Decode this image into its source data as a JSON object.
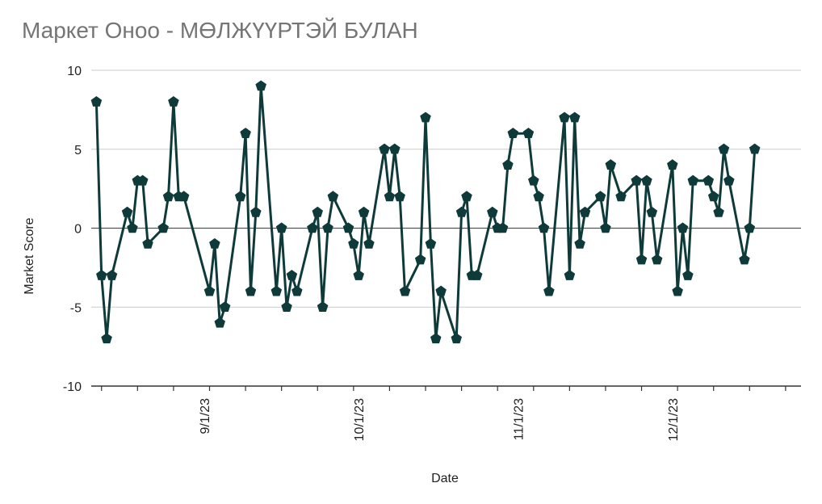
{
  "chart_data": {
    "type": "line",
    "title": "Маркет Оноо - МӨЛЖҮҮРТЭЙ БУЛАН",
    "xlabel": "Date",
    "ylabel": "Market Score",
    "ylim": [
      -10,
      10
    ],
    "y_ticks": [
      10,
      5,
      0,
      -5,
      -10
    ],
    "x_ticks": [
      "9/1/23",
      "10/1/23",
      "11/1/23",
      "12/1/23"
    ],
    "x_range": [
      "2023-08-10",
      "2023-12-26"
    ],
    "grid": true,
    "legend": "none",
    "series": [
      {
        "color": "#0f3a3a",
        "points": [
          [
            "2023-08-11",
            8
          ],
          [
            "2023-08-12",
            -3
          ],
          [
            "2023-08-13",
            -7
          ],
          [
            "2023-08-14",
            -3
          ],
          [
            "2023-08-17",
            1
          ],
          [
            "2023-08-18",
            0
          ],
          [
            "2023-08-19",
            3
          ],
          [
            "2023-08-20",
            3
          ],
          [
            "2023-08-21",
            -1
          ],
          [
            "2023-08-24",
            0
          ],
          [
            "2023-08-25",
            2
          ],
          [
            "2023-08-26",
            8
          ],
          [
            "2023-08-27",
            2
          ],
          [
            "2023-08-28",
            2
          ],
          [
            "2023-09-02",
            -4
          ],
          [
            "2023-09-03",
            -1
          ],
          [
            "2023-09-04",
            -6
          ],
          [
            "2023-09-05",
            -5
          ],
          [
            "2023-09-08",
            2
          ],
          [
            "2023-09-09",
            6
          ],
          [
            "2023-09-10",
            -4
          ],
          [
            "2023-09-11",
            1
          ],
          [
            "2023-09-12",
            9
          ],
          [
            "2023-09-15",
            -4
          ],
          [
            "2023-09-16",
            0
          ],
          [
            "2023-09-17",
            -5
          ],
          [
            "2023-09-18",
            -3
          ],
          [
            "2023-09-19",
            -4
          ],
          [
            "2023-09-22",
            0
          ],
          [
            "2023-09-23",
            1
          ],
          [
            "2023-09-24",
            -5
          ],
          [
            "2023-09-25",
            0
          ],
          [
            "2023-09-26",
            2
          ],
          [
            "2023-09-29",
            0
          ],
          [
            "2023-09-30",
            -1
          ],
          [
            "2023-10-01",
            -3
          ],
          [
            "2023-10-02",
            1
          ],
          [
            "2023-10-03",
            -1
          ],
          [
            "2023-10-06",
            5
          ],
          [
            "2023-10-07",
            2
          ],
          [
            "2023-10-08",
            5
          ],
          [
            "2023-10-09",
            2
          ],
          [
            "2023-10-10",
            -4
          ],
          [
            "2023-10-13",
            -2
          ],
          [
            "2023-10-14",
            7
          ],
          [
            "2023-10-15",
            -1
          ],
          [
            "2023-10-16",
            -7
          ],
          [
            "2023-10-17",
            -4
          ],
          [
            "2023-10-20",
            -7
          ],
          [
            "2023-10-21",
            1
          ],
          [
            "2023-10-22",
            2
          ],
          [
            "2023-10-23",
            -3
          ],
          [
            "2023-10-24",
            -3
          ],
          [
            "2023-10-27",
            1
          ],
          [
            "2023-10-28",
            0
          ],
          [
            "2023-10-29",
            0
          ],
          [
            "2023-10-30",
            4
          ],
          [
            "2023-10-31",
            6
          ],
          [
            "2023-11-03",
            6
          ],
          [
            "2023-11-04",
            3
          ],
          [
            "2023-11-05",
            2
          ],
          [
            "2023-11-06",
            0
          ],
          [
            "2023-11-07",
            -4
          ],
          [
            "2023-11-10",
            7
          ],
          [
            "2023-11-11",
            -3
          ],
          [
            "2023-11-12",
            7
          ],
          [
            "2023-11-13",
            -1
          ],
          [
            "2023-11-14",
            1
          ],
          [
            "2023-11-17",
            2
          ],
          [
            "2023-11-18",
            0
          ],
          [
            "2023-11-19",
            4
          ],
          [
            "2023-11-21",
            2
          ],
          [
            "2023-11-24",
            3
          ],
          [
            "2023-11-25",
            -2
          ],
          [
            "2023-11-26",
            3
          ],
          [
            "2023-11-27",
            1
          ],
          [
            "2023-11-28",
            -2
          ],
          [
            "2023-12-01",
            4
          ],
          [
            "2023-12-02",
            -4
          ],
          [
            "2023-12-03",
            0
          ],
          [
            "2023-12-04",
            -3
          ],
          [
            "2023-12-05",
            3
          ],
          [
            "2023-12-08",
            3
          ],
          [
            "2023-12-09",
            2
          ],
          [
            "2023-12-10",
            1
          ],
          [
            "2023-12-11",
            5
          ],
          [
            "2023-12-12",
            3
          ],
          [
            "2023-12-15",
            -2
          ],
          [
            "2023-12-16",
            0
          ],
          [
            "2023-12-17",
            5
          ]
        ]
      }
    ]
  }
}
